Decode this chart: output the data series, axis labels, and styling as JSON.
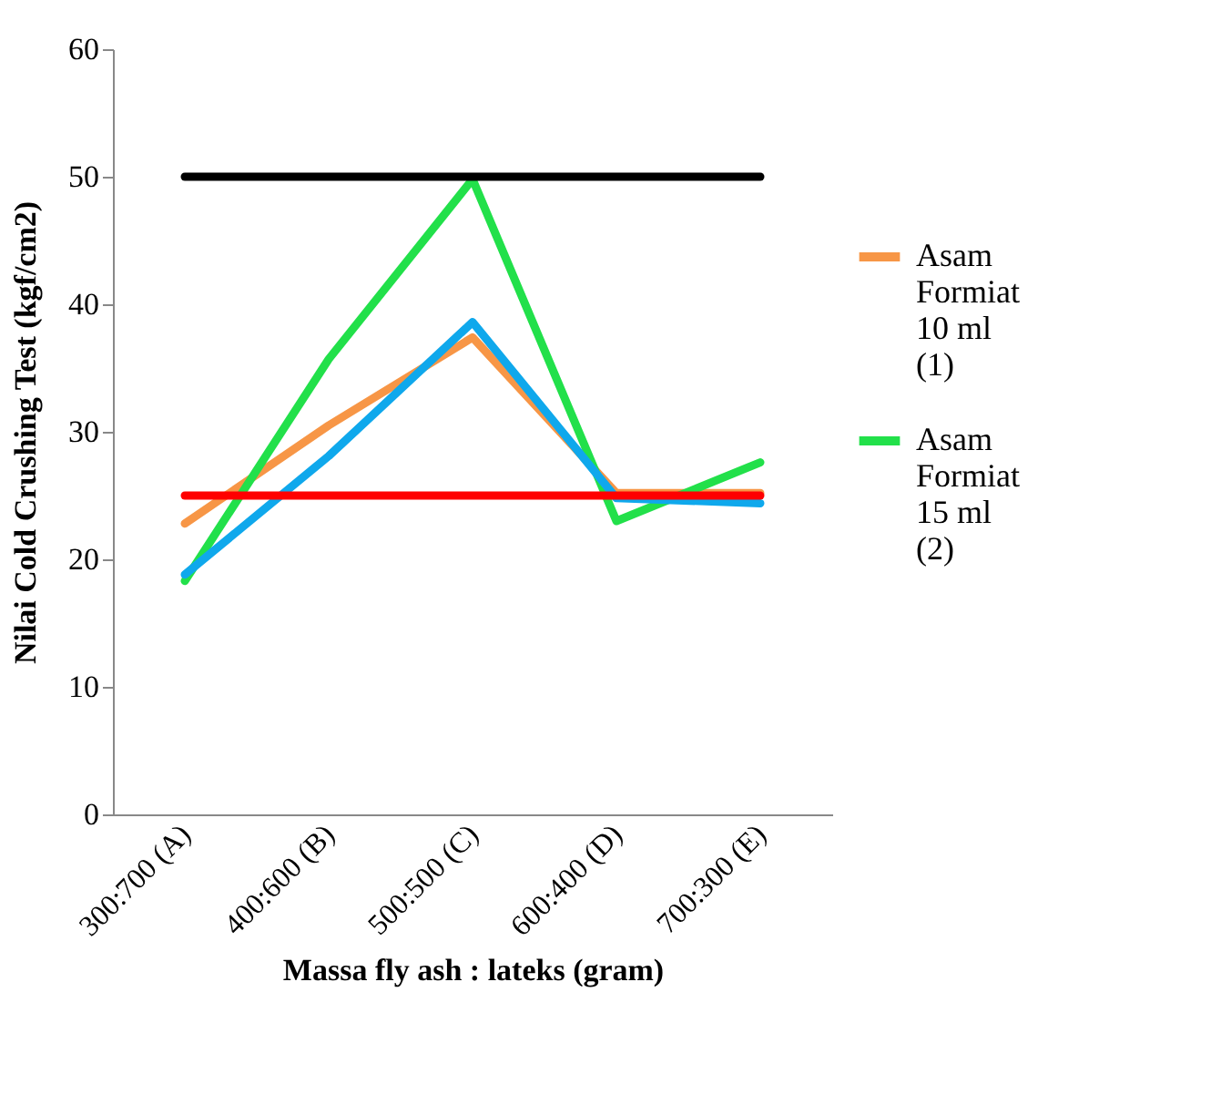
{
  "chart_data": {
    "type": "line",
    "xlabel": "Massa fly ash : lateks (gram)",
    "ylabel": "Nilai Cold Crushing Test (kgf/cm2)",
    "categories": [
      "300:700 (A)",
      "400:600 (B)",
      "500:500 (C)",
      "600:400 (D)",
      "700:300 (E)"
    ],
    "series": [
      {
        "name": "Asam Formiat 10 ml (1)",
        "color": "#f79646",
        "values": [
          22.8,
          30.5,
          37.4,
          25.2,
          25.2
        ]
      },
      {
        "name": "Asam Formiat 15 ml (2)",
        "color": "#22e04a",
        "values": [
          18.3,
          35.7,
          49.8,
          23.0,
          27.6
        ]
      },
      {
        "color": "#0fa8ec",
        "values": [
          18.8,
          28.1,
          38.6,
          24.8,
          24.4
        ]
      },
      {
        "color": "#000000",
        "values": [
          50,
          50,
          50,
          50,
          50
        ]
      },
      {
        "color": "#ff0000",
        "values": [
          25,
          25,
          25,
          25,
          25
        ]
      }
    ],
    "ylim": [
      0,
      60
    ],
    "yticks": [
      0,
      10,
      20,
      30,
      40,
      50,
      60
    ],
    "grid": false,
    "legend": "right",
    "marker": "none",
    "line_style": "solid"
  }
}
